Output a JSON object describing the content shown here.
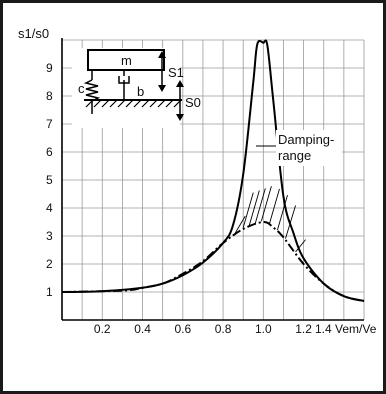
{
  "chart_data": {
    "type": "line",
    "title": "",
    "ylabel": "s1/s0",
    "xlabel": "1.4 Vem/Ve",
    "xlim": [
      0.0,
      1.5
    ],
    "ylim": [
      0,
      10
    ],
    "x_ticks": [
      "0.2",
      "0.4",
      "0.6",
      "0.8",
      "1.0",
      "1.2"
    ],
    "y_ticks": [
      "1",
      "2",
      "3",
      "4",
      "5",
      "6",
      "7",
      "8",
      "9"
    ],
    "grid": true,
    "series": [
      {
        "style": "solid",
        "points": [
          [
            0.0,
            1.0
          ],
          [
            0.2,
            1.03
          ],
          [
            0.4,
            1.15
          ],
          [
            0.5,
            1.3
          ],
          [
            0.6,
            1.6
          ],
          [
            0.7,
            2.05
          ],
          [
            0.8,
            2.75
          ],
          [
            0.85,
            3.4
          ],
          [
            0.9,
            5.2
          ],
          [
            0.95,
            8.5
          ],
          [
            0.97,
            9.85
          ],
          [
            1.0,
            9.9
          ],
          [
            1.02,
            9.8
          ],
          [
            1.05,
            7.8
          ],
          [
            1.1,
            4.4
          ],
          [
            1.15,
            3.1
          ],
          [
            1.2,
            2.2
          ],
          [
            1.3,
            1.3
          ],
          [
            1.4,
            0.85
          ],
          [
            1.5,
            0.68
          ]
        ]
      },
      {
        "style": "dash-dot",
        "points": [
          [
            0.0,
            1.0
          ],
          [
            0.3,
            1.05
          ],
          [
            0.4,
            1.15
          ],
          [
            0.5,
            1.3
          ],
          [
            0.6,
            1.65
          ],
          [
            0.7,
            2.1
          ],
          [
            0.8,
            2.75
          ],
          [
            0.9,
            3.25
          ],
          [
            1.0,
            3.5
          ],
          [
            1.05,
            3.3
          ],
          [
            1.1,
            2.95
          ],
          [
            1.2,
            2.0
          ],
          [
            1.3,
            1.3
          ],
          [
            1.4,
            0.85
          ],
          [
            1.5,
            0.68
          ]
        ]
      }
    ],
    "annotations": {
      "damping_label_line1": "Damping-",
      "damping_label_line2": "range"
    },
    "inset": {
      "mass_label": "m",
      "spring_label": "c",
      "damper_label": "b",
      "s1_label": "S1",
      "s0_label": "S0"
    }
  }
}
